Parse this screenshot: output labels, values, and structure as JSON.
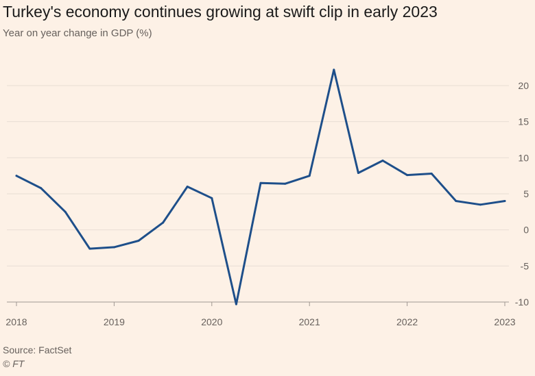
{
  "header": {
    "title": "Turkey's economy continues growing at swift clip in early 2023",
    "subtitle": "Year on year change in GDP (%)"
  },
  "footer": {
    "source": "Source: FactSet",
    "credit": "© FT"
  },
  "colors": {
    "background": "#fdf1e6",
    "line": "#1e4f8a",
    "grid": "#e8ddd3",
    "text": "#66605c"
  },
  "chart_data": {
    "type": "line",
    "title": "Turkey's economy continues growing at swift clip in early 2023",
    "subtitle": "Year on year change in GDP (%)",
    "xlabel": "",
    "ylabel": "",
    "xlim": [
      2018,
      2023
    ],
    "ylim": [
      -10,
      22.5
    ],
    "x_ticks": [
      "2018",
      "2019",
      "2020",
      "2021",
      "2022",
      "2023"
    ],
    "y_ticks": [
      20,
      15,
      10,
      5,
      0,
      -5,
      -10
    ],
    "grid": true,
    "y_axis_side": "right",
    "series": [
      {
        "x": [
          2018.0,
          2018.25,
          2018.5,
          2018.75,
          2019.0,
          2019.25,
          2019.5,
          2019.75,
          2020.0,
          2020.25,
          2020.5,
          2020.75,
          2021.0,
          2021.25,
          2021.5,
          2021.75,
          2022.0,
          2022.25,
          2022.5,
          2022.75,
          2023.0
        ],
        "values": [
          7.5,
          5.8,
          2.5,
          -2.6,
          -2.4,
          -1.5,
          1.0,
          6.0,
          4.4,
          -10.3,
          6.5,
          6.4,
          7.5,
          22.2,
          7.9,
          9.6,
          7.6,
          7.8,
          4.0,
          3.5,
          4.0
        ]
      }
    ]
  }
}
